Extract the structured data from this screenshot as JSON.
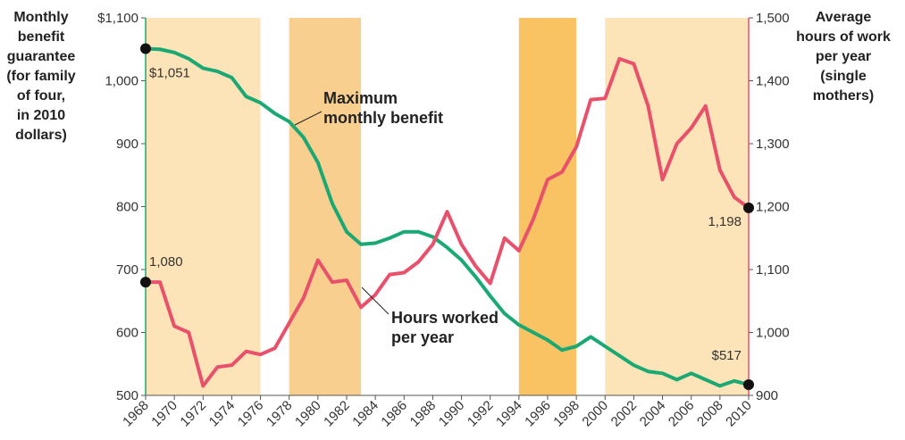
{
  "chart_data": {
    "type": "line",
    "y_label_lines": [
      "Monthly",
      "benefit",
      "guarantee",
      "(for family",
      "of four,",
      "in 2010",
      "dollars)"
    ],
    "y2_label_lines": [
      "Average",
      "hours of work",
      "per year",
      "(single",
      "mothers)"
    ],
    "x": [
      1968,
      1969,
      1970,
      1971,
      1972,
      1973,
      1974,
      1975,
      1976,
      1977,
      1978,
      1979,
      1980,
      1981,
      1982,
      1983,
      1984,
      1985,
      1986,
      1987,
      1988,
      1989,
      1990,
      1991,
      1992,
      1993,
      1994,
      1995,
      1996,
      1997,
      1998,
      1999,
      2000,
      2001,
      2002,
      2003,
      2004,
      2005,
      2006,
      2007,
      2008,
      2009,
      2010
    ],
    "series": [
      {
        "name": "Maximum monthly benefit",
        "color": "#1aa974",
        "axis": "y",
        "values": [
          1051,
          1050,
          1045,
          1035,
          1020,
          1015,
          1005,
          975,
          965,
          948,
          935,
          910,
          870,
          805,
          760,
          740,
          742,
          750,
          760,
          760,
          752,
          735,
          715,
          688,
          658,
          630,
          612,
          600,
          588,
          572,
          578,
          593,
          578,
          563,
          548,
          538,
          535,
          525,
          535,
          525,
          515,
          523,
          517
        ],
        "value_labels": [
          "$1,051",
          null,
          null,
          null,
          null,
          null,
          null,
          null,
          null,
          null,
          null,
          null,
          null,
          null,
          null,
          null,
          null,
          null,
          null,
          null,
          null,
          null,
          null,
          null,
          null,
          null,
          null,
          null,
          null,
          null,
          null,
          null,
          null,
          null,
          null,
          null,
          null,
          null,
          null,
          null,
          null,
          null,
          "$517"
        ]
      },
      {
        "name": "Hours worked per year",
        "color": "#e8506b",
        "axis": "y2",
        "values": [
          1080,
          1080,
          1010,
          1000,
          915,
          945,
          948,
          970,
          965,
          975,
          1015,
          1055,
          1115,
          1080,
          1083,
          1040,
          1060,
          1092,
          1095,
          1112,
          1140,
          1192,
          1140,
          1105,
          1078,
          1150,
          1130,
          1180,
          1243,
          1255,
          1295,
          1370,
          1372,
          1435,
          1427,
          1360,
          1243,
          1300,
          1325,
          1360,
          1258,
          1215,
          1198
        ],
        "value_labels": [
          "1,080",
          null,
          null,
          null,
          null,
          null,
          null,
          null,
          null,
          null,
          null,
          null,
          null,
          null,
          null,
          null,
          null,
          null,
          null,
          null,
          null,
          null,
          null,
          null,
          null,
          null,
          null,
          null,
          null,
          null,
          null,
          null,
          null,
          null,
          null,
          null,
          null,
          null,
          null,
          null,
          null,
          null,
          "1,198"
        ]
      }
    ],
    "shaded_periods": [
      {
        "start": 1968,
        "end": 1976,
        "color": "#fde4b8"
      },
      {
        "start": 1978,
        "end": 1983,
        "color": "#f9cf8f"
      },
      {
        "start": 1994,
        "end": 1998,
        "color": "#f9c263"
      },
      {
        "start": 2000,
        "end": 2010,
        "color": "#fde4b8"
      }
    ],
    "xlim": [
      1968,
      2010
    ],
    "xticks": [
      1968,
      1970,
      1972,
      1974,
      1976,
      1978,
      1980,
      1982,
      1984,
      1986,
      1988,
      1990,
      1992,
      1994,
      1996,
      1998,
      2000,
      2002,
      2004,
      2006,
      2008,
      2010
    ],
    "ylim": [
      500,
      1100
    ],
    "yticks": [
      500,
      600,
      700,
      800,
      900,
      {
        "value": 1000,
        "label": "1,000"
      },
      {
        "value": 1100,
        "label": "$1,100"
      }
    ],
    "y2lim": [
      900,
      1500
    ],
    "y2ticks": [
      900,
      {
        "value": 1000,
        "label": "1,000"
      },
      {
        "value": 1100,
        "label": "1,100"
      },
      {
        "value": 1200,
        "label": "1,200"
      },
      {
        "value": 1300,
        "label": "1,300"
      },
      {
        "value": 1400,
        "label": "1,400"
      },
      {
        "value": 1500,
        "label": "1,500"
      }
    ]
  }
}
